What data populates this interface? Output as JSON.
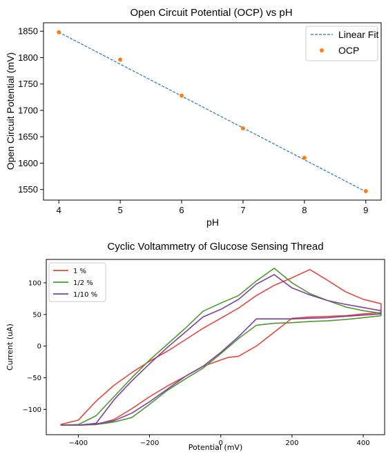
{
  "chart_data": [
    {
      "type": "line",
      "title": "Open Circuit Potential (OCP) vs pH",
      "xlabel": "pH",
      "ylabel": "Open Circuit Potential (mV)",
      "xlim": [
        3.75,
        9.25
      ],
      "ylim": [
        1530,
        1866
      ],
      "xticks": [
        4,
        5,
        6,
        7,
        8,
        9
      ],
      "yticks": [
        1550,
        1600,
        1650,
        1700,
        1750,
        1800,
        1850
      ],
      "grid": false,
      "legend": "top-right",
      "series": [
        {
          "name": "Linear Fit",
          "style": "dashed-line",
          "color": "#1f77b4",
          "x": [
            4,
            9
          ],
          "y": [
            1848,
            1546
          ]
        },
        {
          "name": "OCP",
          "style": "markers",
          "color": "#ff7f0e",
          "x": [
            4,
            5,
            6,
            7,
            8,
            9
          ],
          "y": [
            1848,
            1796,
            1728,
            1666,
            1610,
            1547
          ]
        }
      ]
    },
    {
      "type": "line",
      "title": "Cyclic Voltammetry of Glucose Sensing Thread",
      "xlabel": "Potential (mV)",
      "ylabel": "Current (uA)",
      "xlim": [
        -490,
        460
      ],
      "ylim": [
        -140,
        137
      ],
      "xticks": [
        -400,
        -200,
        0,
        200,
        400
      ],
      "yticks": [
        -100,
        -50,
        0,
        50,
        100
      ],
      "grid": false,
      "legend": "top-left",
      "series": [
        {
          "name": "1 %",
          "color": "#e8453c",
          "x": [
            -450,
            -400,
            -350,
            -300,
            -250,
            -200,
            -150,
            -100,
            -50,
            0,
            50,
            100,
            150,
            200,
            250,
            300,
            350,
            400,
            450,
            450,
            400,
            350,
            300,
            250,
            200,
            150,
            100,
            50,
            20,
            0,
            -50,
            -100,
            -150,
            -200,
            -250,
            -300,
            -350,
            -400,
            -450
          ],
          "y": [
            -124,
            -117,
            -87,
            -62,
            -42,
            -24,
            -8,
            10,
            28,
            44,
            60,
            80,
            96,
            108,
            121,
            104,
            86,
            74,
            67,
            53,
            51,
            48,
            47,
            46,
            44,
            22,
            0,
            -16,
            -18,
            -22,
            -32,
            -48,
            -63,
            -80,
            -99,
            -116,
            -124,
            -125,
            -125
          ]
        },
        {
          "name": "1/2 %",
          "color": "#4a9a2e",
          "x": [
            -450,
            -400,
            -350,
            -300,
            -250,
            -200,
            -150,
            -100,
            -50,
            0,
            50,
            100,
            150,
            200,
            250,
            300,
            350,
            400,
            450,
            450,
            400,
            350,
            300,
            250,
            200,
            150,
            100,
            50,
            0,
            -50,
            -100,
            -150,
            -200,
            -250,
            -300,
            -350,
            -400,
            -450
          ],
          "y": [
            -125,
            -124,
            -110,
            -80,
            -50,
            -22,
            3,
            28,
            55,
            68,
            80,
            103,
            123,
            100,
            83,
            72,
            62,
            56,
            52,
            48,
            45,
            42,
            40,
            39,
            37,
            36,
            33,
            12,
            -12,
            -35,
            -52,
            -70,
            -92,
            -113,
            -120,
            -124,
            -125,
            -125
          ]
        },
        {
          "name": "1/10 %",
          "color": "#7c3fa0",
          "x": [
            -450,
            -400,
            -350,
            -300,
            -250,
            -200,
            -150,
            -100,
            -50,
            0,
            50,
            100,
            150,
            200,
            250,
            300,
            350,
            400,
            450,
            450,
            400,
            350,
            300,
            250,
            200,
            150,
            100,
            50,
            0,
            -50,
            -100,
            -150,
            -200,
            -250,
            -300,
            -350,
            -400,
            -450
          ],
          "y": [
            -125,
            -125,
            -122,
            -85,
            -55,
            -28,
            -2,
            22,
            46,
            58,
            74,
            98,
            113,
            92,
            81,
            72,
            66,
            61,
            56,
            51,
            49,
            47,
            45,
            44,
            43,
            43,
            43,
            15,
            -10,
            -32,
            -48,
            -68,
            -88,
            -106,
            -118,
            -123,
            -125,
            -125
          ]
        }
      ]
    }
  ]
}
